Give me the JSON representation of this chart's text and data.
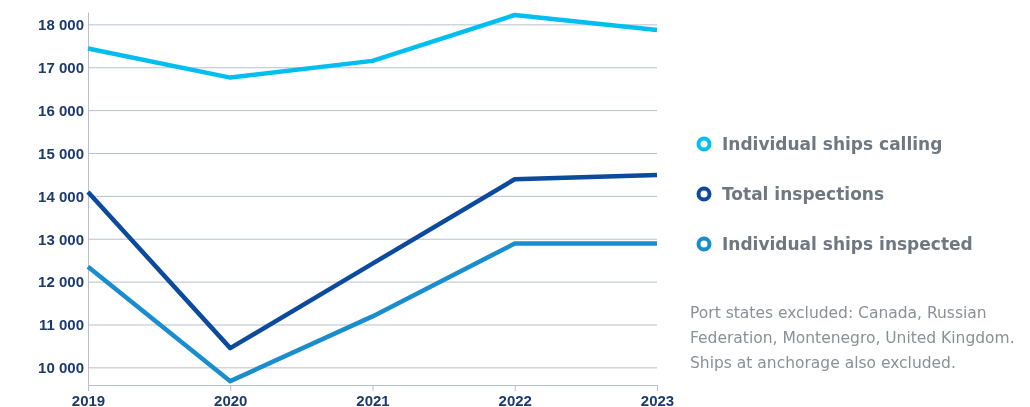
{
  "chart_data": {
    "type": "line",
    "categories": [
      "2019",
      "2020",
      "2021",
      "2022",
      "2023"
    ],
    "series": [
      {
        "name": "Individual ships calling",
        "color": "#00bff0",
        "values": [
          17450,
          16770,
          17160,
          18230,
          17880
        ]
      },
      {
        "name": "Total inspections",
        "color": "#0b4a9c",
        "values": [
          14100,
          10460,
          12430,
          14400,
          14500
        ]
      },
      {
        "name": "Individual ships inspected",
        "color": "#1a8dcc",
        "values": [
          12360,
          9690,
          11200,
          12900,
          12900
        ]
      }
    ],
    "ylim": [
      9600,
      18300
    ],
    "yticks": [
      {
        "value": 10000,
        "label": "10 000"
      },
      {
        "value": 11000,
        "label": "11 000"
      },
      {
        "value": 12000,
        "label": "12 000"
      },
      {
        "value": 13000,
        "label": "13 000"
      },
      {
        "value": 14000,
        "label": "14 000"
      },
      {
        "value": 15000,
        "label": "15 000"
      },
      {
        "value": 16000,
        "label": "16 000"
      },
      {
        "value": 17000,
        "label": "17 000"
      },
      {
        "value": 18000,
        "label": "18 000"
      }
    ],
    "grid": "y",
    "legend": "right",
    "line_style": "solid",
    "annotations": [
      "Port states excluded: Canada, Russian Federation, Montenegro, United Kingdom. Ships at anchorage also excluded."
    ]
  }
}
